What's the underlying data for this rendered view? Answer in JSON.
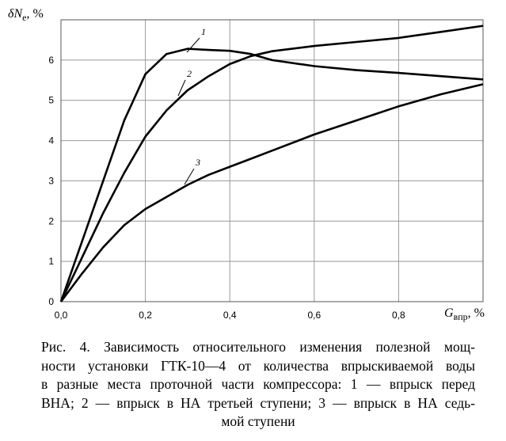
{
  "chart_data": {
    "type": "line",
    "ylabel_main": "δN",
    "ylabel_sub": "е",
    "ylabel_unit": ", %",
    "xlabel_main": "G",
    "xlabel_sub": "впр",
    "xlabel_unit": ", %",
    "x": [
      0,
      0.05,
      0.1,
      0.15,
      0.2,
      0.25,
      0.3,
      0.35,
      0.4,
      0.45,
      0.5,
      0.6,
      0.7,
      0.8,
      0.9,
      1.0
    ],
    "series": [
      {
        "name": "1",
        "color": "#000000",
        "values": [
          0,
          1.5,
          3.0,
          4.5,
          5.65,
          6.15,
          6.28,
          6.25,
          6.23,
          6.15,
          6.0,
          5.85,
          5.75,
          5.68,
          5.6,
          5.52
        ]
      },
      {
        "name": "2",
        "color": "#000000",
        "values": [
          0,
          1.1,
          2.2,
          3.2,
          4.1,
          4.75,
          5.25,
          5.6,
          5.9,
          6.1,
          6.22,
          6.35,
          6.45,
          6.55,
          6.7,
          6.85
        ]
      },
      {
        "name": "3",
        "color": "#000000",
        "values": [
          0,
          0.7,
          1.35,
          1.9,
          2.3,
          2.6,
          2.9,
          3.15,
          3.35,
          3.55,
          3.75,
          4.15,
          4.5,
          4.85,
          5.15,
          5.4
        ]
      }
    ],
    "xlim": [
      0,
      1
    ],
    "ylim": [
      0,
      7
    ],
    "xticks": [
      {
        "value": 0,
        "label": "0,0"
      },
      {
        "value": 0.2,
        "label": "0,2"
      },
      {
        "value": 0.4,
        "label": "0,4"
      },
      {
        "value": 0.6,
        "label": "0,6"
      },
      {
        "value": 0.8,
        "label": "0,8"
      }
    ],
    "yticks": [
      0,
      1,
      2,
      3,
      4,
      5,
      6
    ],
    "grid": true,
    "caption": [
      "Рис. 4. Зависимость относительного изменения полезной мощ-",
      "ности установки ГТК-10—4 от количества впрыскиваемой воды",
      "в разные места проточной части компрессора: 1 — впрыск перед",
      "ВНА; 2 — впрыск в НА третьей ступени; 3 — впрыск в НА седь-",
      "мой ступени"
    ]
  }
}
